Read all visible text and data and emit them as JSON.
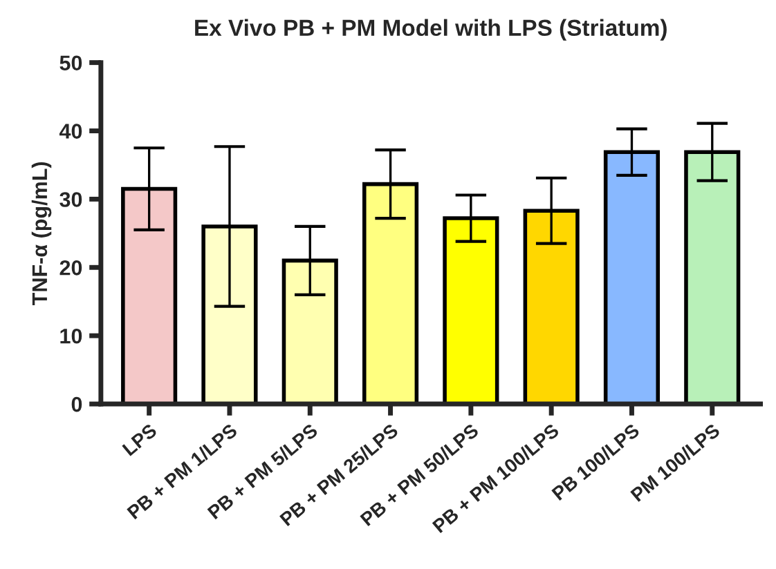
{
  "chart_data": {
    "type": "bar",
    "title": "Ex Vivo PB + PM Model with LPS (Striatum)",
    "ylabel": "TNF-α (pg/mL)",
    "categories": [
      "LPS",
      "PB + PM 1/LPS",
      "PB + PM 5/LPS",
      "PB + PM 25/LPS",
      "PB + PM 50/LPS",
      "PB + PM 100/LPS",
      "PB 100/LPS",
      "PM 100/LPS"
    ],
    "values": [
      31.5,
      26,
      21,
      32.2,
      27.2,
      28.3,
      36.9,
      36.9
    ],
    "errors": [
      6,
      11.7,
      5,
      5,
      3.4,
      4.8,
      3.4,
      4.2
    ],
    "colors": [
      "#f4c8c8",
      "#ffffc8",
      "#ffffb0",
      "#ffff80",
      "#ffff00",
      "#ffd700",
      "#88b8ff",
      "#b8f0b8"
    ],
    "ylim": [
      0,
      50
    ],
    "yticks": [
      0,
      10,
      20,
      30,
      40,
      50
    ],
    "grid": false
  }
}
